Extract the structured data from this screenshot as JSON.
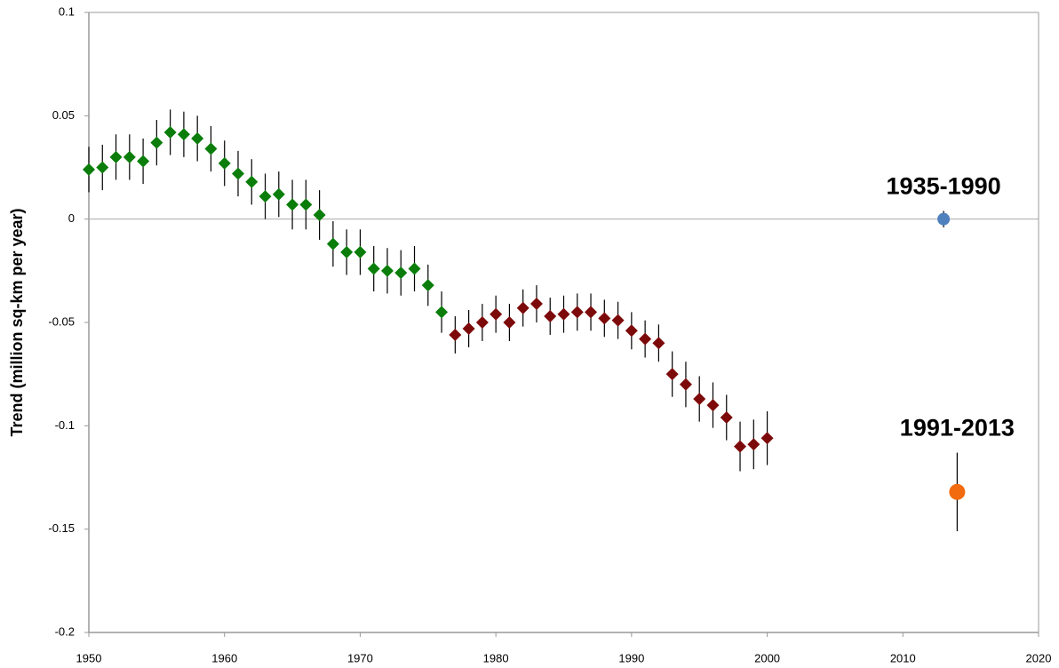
{
  "chart_data": {
    "type": "scatter",
    "y_label": "Trend (million sq-km per year)",
    "xlim": [
      1950,
      2020
    ],
    "xticks": [
      1950,
      1960,
      1970,
      1980,
      1990,
      2000,
      2010,
      2020
    ],
    "ylim": [
      -0.2,
      0.1
    ],
    "yticks": [
      0.1,
      0.05,
      0,
      -0.05,
      -0.1,
      -0.15,
      -0.2
    ],
    "zero_line": true,
    "series": [
      {
        "color": "#0a7d0a",
        "marker": "diamond",
        "x": [
          1950,
          1951,
          1952,
          1953,
          1954,
          1955,
          1956,
          1957,
          1958,
          1959,
          1960,
          1961,
          1962,
          1963,
          1964,
          1965,
          1966,
          1967,
          1968,
          1969,
          1970,
          1971,
          1972,
          1973,
          1974,
          1975,
          1976
        ],
        "values": [
          0.024,
          0.025,
          0.03,
          0.03,
          0.028,
          0.037,
          0.042,
          0.041,
          0.039,
          0.034,
          0.027,
          0.022,
          0.018,
          0.011,
          0.012,
          0.007,
          0.007,
          0.002,
          -0.012,
          -0.016,
          -0.016,
          -0.024,
          -0.025,
          -0.026,
          -0.024,
          -0.032,
          -0.045
        ],
        "errors": [
          0.011,
          0.011,
          0.011,
          0.011,
          0.011,
          0.011,
          0.011,
          0.011,
          0.011,
          0.011,
          0.011,
          0.011,
          0.011,
          0.011,
          0.011,
          0.012,
          0.012,
          0.012,
          0.011,
          0.011,
          0.011,
          0.011,
          0.011,
          0.011,
          0.011,
          0.01,
          0.01
        ]
      },
      {
        "color": "#7d0a0a",
        "marker": "diamond",
        "x": [
          1977,
          1978,
          1979,
          1980,
          1981,
          1982,
          1983,
          1984,
          1985,
          1986,
          1987,
          1988,
          1989,
          1990,
          1991,
          1992,
          1993,
          1994,
          1995,
          1996,
          1997,
          1998,
          1999,
          2000
        ],
        "values": [
          -0.056,
          -0.053,
          -0.05,
          -0.046,
          -0.05,
          -0.043,
          -0.041,
          -0.047,
          -0.046,
          -0.045,
          -0.045,
          -0.048,
          -0.049,
          -0.054,
          -0.058,
          -0.06,
          -0.075,
          -0.08,
          -0.087,
          -0.09,
          -0.096,
          -0.11,
          -0.109,
          -0.106
        ],
        "errors": [
          0.009,
          0.009,
          0.009,
          0.009,
          0.009,
          0.009,
          0.009,
          0.009,
          0.009,
          0.009,
          0.009,
          0.009,
          0.009,
          0.009,
          0.009,
          0.009,
          0.011,
          0.011,
          0.011,
          0.011,
          0.011,
          0.012,
          0.012,
          0.013
        ]
      },
      {
        "name": "1935-1990",
        "color": "#4f81bd",
        "marker": "circle",
        "x": [
          2013
        ],
        "values": [
          0
        ],
        "errors": [
          0.004
        ]
      },
      {
        "name": "1991-2013",
        "color": "#f26b0f",
        "marker": "circle",
        "x": [
          2014
        ],
        "values": [
          -0.132
        ],
        "errors": [
          0.019
        ]
      }
    ]
  }
}
